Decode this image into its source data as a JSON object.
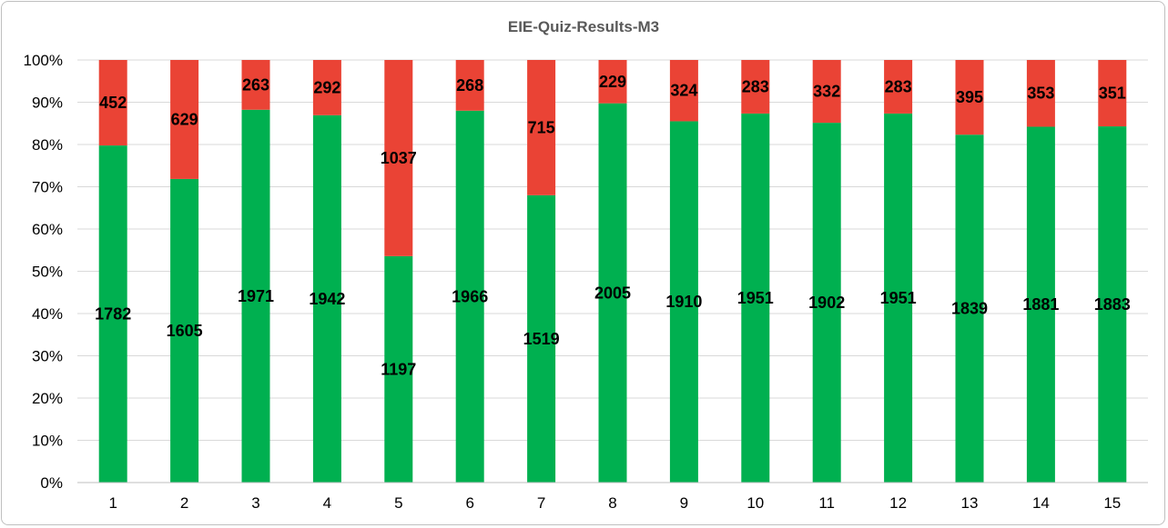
{
  "chart_data": {
    "type": "bar",
    "stacked": "percent",
    "title": "EIE-Quiz-Results-M3",
    "xlabel": "",
    "ylabel": "",
    "categories": [
      "1",
      "2",
      "3",
      "4",
      "5",
      "6",
      "7",
      "8",
      "9",
      "10",
      "11",
      "12",
      "13",
      "14",
      "15"
    ],
    "series": [
      {
        "color": "#00b050",
        "values": [
          1782,
          1605,
          1971,
          1942,
          1197,
          1966,
          1519,
          2005,
          1910,
          1951,
          1902,
          1951,
          1839,
          1881,
          1883
        ]
      },
      {
        "color": "#ea4335",
        "values": [
          452,
          629,
          263,
          292,
          1037,
          268,
          715,
          229,
          324,
          283,
          332,
          283,
          395,
          353,
          351
        ]
      }
    ],
    "ylim": [
      0,
      100
    ],
    "yticks": [
      "0%",
      "10%",
      "20%",
      "30%",
      "40%",
      "50%",
      "60%",
      "70%",
      "80%",
      "90%",
      "100%"
    ],
    "grid": "horizontal",
    "legend": "none"
  }
}
